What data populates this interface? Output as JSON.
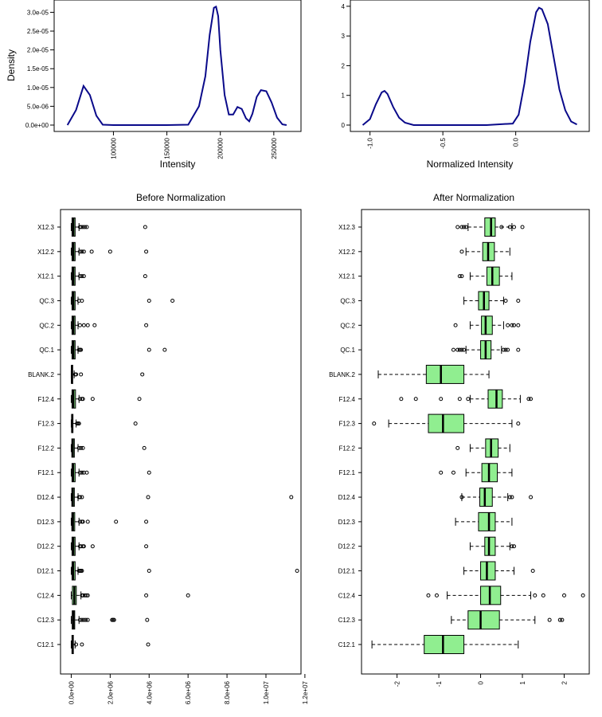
{
  "colors": {
    "density_line": "#0a0a8a",
    "box_after": "#90ee90",
    "box_before": "#90ee90",
    "ink": "#000000"
  },
  "chart_data": [
    {
      "id": "density-before",
      "type": "line",
      "title": "",
      "xlabel": "Intensity",
      "ylabel": "Density",
      "xlim": [
        52000,
        268000
      ],
      "ylim": [
        0,
        3.2e-05
      ],
      "xticks": [
        100000,
        150000,
        200000,
        250000
      ],
      "xtick_labels": [
        "100000",
        "150000",
        "200000",
        "250000"
      ],
      "yticks": [
        0,
        5e-06,
        1e-05,
        1.5e-05,
        2e-05,
        2.5e-05,
        3e-05
      ],
      "ytick_labels": [
        "0.0e+00",
        "5.0e-06",
        "1.0e-05",
        "1.5e-05",
        "2.0e-05",
        "2.5e-05",
        "3.0e-05"
      ],
      "x": [
        57000,
        65000,
        72000,
        78000,
        84000,
        90000,
        100000,
        120000,
        150000,
        170000,
        180000,
        186000,
        190000,
        194000,
        196000,
        198000,
        200000,
        204000,
        208000,
        212000,
        216000,
        220000,
        224000,
        227000,
        230000,
        234000,
        238000,
        243000,
        248000,
        253000,
        258000,
        262000
      ],
      "y": [
        0.0,
        4e-06,
        1.04e-05,
        8e-06,
        2.5e-06,
        1e-07,
        0,
        0,
        0,
        1e-07,
        5e-06,
        1.3e-05,
        2.4e-05,
        3.12e-05,
        3.15e-05,
        2.9e-05,
        2e-05,
        8e-06,
        2.8e-06,
        2.8e-06,
        4.8e-06,
        4.3e-06,
        1.8e-06,
        1e-06,
        3e-06,
        7.5e-06,
        9.3e-06,
        9e-06,
        6e-06,
        2e-06,
        2e-07,
        0
      ]
    },
    {
      "id": "density-after",
      "type": "line",
      "title": "",
      "xlabel": "Normalized Intensity",
      "ylabel": "",
      "xlim": [
        -1.08,
        0.45
      ],
      "ylim": [
        0,
        4.05
      ],
      "xticks": [
        -1.0,
        -0.5,
        0.0
      ],
      "xtick_labels": [
        "-1.0",
        "-0.5",
        "0.0"
      ],
      "yticks": [
        0,
        1,
        2,
        3,
        4
      ],
      "ytick_labels": [
        "0",
        "1",
        "2",
        "3",
        "4"
      ],
      "x": [
        -1.05,
        -1.0,
        -0.96,
        -0.92,
        -0.9,
        -0.88,
        -0.84,
        -0.8,
        -0.76,
        -0.7,
        -0.5,
        -0.2,
        -0.02,
        0.02,
        0.06,
        0.1,
        0.14,
        0.16,
        0.18,
        0.22,
        0.26,
        0.3,
        0.34,
        0.38,
        0.42
      ],
      "y": [
        0.0,
        0.2,
        0.7,
        1.1,
        1.15,
        1.05,
        0.6,
        0.25,
        0.08,
        0.0,
        0.0,
        0.0,
        0.05,
        0.35,
        1.4,
        2.8,
        3.8,
        3.95,
        3.9,
        3.4,
        2.3,
        1.2,
        0.5,
        0.12,
        0.02
      ]
    },
    {
      "id": "box-before",
      "type": "box",
      "title": "Before Normalization",
      "xlabel": "",
      "ylabel": "",
      "xlim": [
        -550000,
        11800000
      ],
      "xticks": [
        0,
        2000000,
        4000000,
        6000000,
        8000000,
        10000000,
        12000000
      ],
      "xtick_labels": [
        "0.0e+00",
        "2.0e+06",
        "4.0e+06",
        "6.0e+06",
        "8.0e+06",
        "1.0e+07",
        "1.2e+07"
      ],
      "categories": [
        "C12.1",
        "C12.3",
        "C12.4",
        "D12.1",
        "D12.2",
        "D12.3",
        "D12.4",
        "F12.1",
        "F12.2",
        "F12.3",
        "F12.4",
        "BLANK.2",
        "QC.1",
        "QC.2",
        "QC.3",
        "X12.1",
        "X12.2",
        "X12.3"
      ],
      "boxes": [
        {
          "q1": 40000,
          "med": 70000,
          "q3": 110000,
          "lo": 0,
          "hi": 200000,
          "out": [
            250000,
            550000,
            3950000
          ]
        },
        {
          "q1": 50000,
          "med": 110000,
          "q3": 180000,
          "lo": 0,
          "hi": 400000,
          "out": [
            450000,
            550000,
            650000,
            750000,
            850000,
            2100000,
            2150000,
            2200000,
            3900000
          ]
        },
        {
          "q1": 60000,
          "med": 160000,
          "q3": 260000,
          "lo": 0,
          "hi": 500000,
          "out": [
            550000,
            600000,
            700000,
            780000,
            850000,
            3850000,
            6000000
          ]
        },
        {
          "q1": 40000,
          "med": 100000,
          "q3": 200000,
          "lo": 0,
          "hi": 350000,
          "out": [
            400000,
            450000,
            500000,
            550000,
            4000000,
            11600000
          ]
        },
        {
          "q1": 40000,
          "med": 110000,
          "q3": 200000,
          "lo": 0,
          "hi": 400000,
          "out": [
            450000,
            500000,
            600000,
            650000,
            1100000,
            3850000
          ]
        },
        {
          "q1": 30000,
          "med": 90000,
          "q3": 180000,
          "lo": 0,
          "hi": 400000,
          "out": [
            450000,
            550000,
            600000,
            850000,
            2300000,
            3850000
          ]
        },
        {
          "q1": 30000,
          "med": 80000,
          "q3": 160000,
          "lo": 0,
          "hi": 350000,
          "out": [
            400000,
            450000,
            550000,
            3950000,
            11300000
          ]
        },
        {
          "q1": 40000,
          "med": 100000,
          "q3": 200000,
          "lo": 0,
          "hi": 400000,
          "out": [
            450000,
            550000,
            650000,
            800000,
            4000000
          ]
        },
        {
          "q1": 30000,
          "med": 80000,
          "q3": 160000,
          "lo": 0,
          "hi": 350000,
          "out": [
            400000,
            500000,
            600000,
            3750000
          ]
        },
        {
          "q1": 20000,
          "med": 50000,
          "q3": 90000,
          "lo": 0,
          "hi": 250000,
          "out": [
            300000,
            350000,
            400000,
            3300000
          ]
        },
        {
          "q1": 40000,
          "med": 110000,
          "q3": 220000,
          "lo": 0,
          "hi": 400000,
          "out": [
            450000,
            550000,
            600000,
            1100000,
            3500000
          ]
        },
        {
          "q1": 15000,
          "med": 35000,
          "q3": 70000,
          "lo": 0,
          "hi": 150000,
          "out": [
            200000,
            250000,
            500000,
            3650000
          ]
        },
        {
          "q1": 40000,
          "med": 110000,
          "q3": 200000,
          "lo": 0,
          "hi": 350000,
          "out": [
            400000,
            450000,
            500000,
            4000000,
            4800000
          ]
        },
        {
          "q1": 40000,
          "med": 110000,
          "q3": 200000,
          "lo": 0,
          "hi": 350000,
          "out": [
            450000,
            650000,
            850000,
            1200000,
            3850000
          ]
        },
        {
          "q1": 40000,
          "med": 110000,
          "q3": 200000,
          "lo": 0,
          "hi": 350000,
          "out": [
            400000,
            550000,
            4000000,
            5200000
          ]
        },
        {
          "q1": 40000,
          "med": 110000,
          "q3": 200000,
          "lo": 0,
          "hi": 400000,
          "out": [
            450000,
            550000,
            650000,
            3800000
          ]
        },
        {
          "q1": 40000,
          "med": 110000,
          "q3": 200000,
          "lo": 0,
          "hi": 400000,
          "out": [
            450000,
            550000,
            650000,
            1050000,
            2000000,
            3850000
          ]
        },
        {
          "q1": 40000,
          "med": 110000,
          "q3": 200000,
          "lo": 0,
          "hi": 400000,
          "out": [
            450000,
            500000,
            600000,
            700000,
            800000,
            3800000
          ]
        }
      ]
    },
    {
      "id": "box-after",
      "type": "box",
      "title": "After Normalization",
      "xlabel": "",
      "ylabel": "",
      "xlim": [
        -2.85,
        2.6
      ],
      "xticks": [
        -2,
        -1,
        0,
        1,
        2
      ],
      "xtick_labels": [
        "-2",
        "-1",
        "0",
        "1",
        "2"
      ],
      "categories": [
        "C12.1",
        "C12.3",
        "C12.4",
        "D12.1",
        "D12.2",
        "D12.3",
        "D12.4",
        "F12.1",
        "F12.2",
        "F12.3",
        "F12.4",
        "BLANK.2",
        "QC.1",
        "QC.2",
        "QC.3",
        "X12.1",
        "X12.2",
        "X12.3"
      ],
      "boxes": [
        {
          "q1": -1.35,
          "med": -0.9,
          "q3": -0.4,
          "lo": -2.6,
          "hi": 0.9,
          "out": []
        },
        {
          "q1": -0.3,
          "med": 0.0,
          "q3": 0.45,
          "lo": -0.7,
          "hi": 1.3,
          "out": [
            1.65,
            1.9,
            1.95
          ]
        },
        {
          "q1": 0.0,
          "med": 0.22,
          "q3": 0.48,
          "lo": -0.8,
          "hi": 1.2,
          "out": [
            -1.25,
            -1.05,
            1.3,
            1.5,
            2.0,
            2.45
          ]
        },
        {
          "q1": 0.0,
          "med": 0.15,
          "q3": 0.35,
          "lo": -0.4,
          "hi": 0.8,
          "out": [
            1.25
          ]
        },
        {
          "q1": 0.1,
          "med": 0.2,
          "q3": 0.35,
          "lo": -0.25,
          "hi": 0.7,
          "out": [
            0.75,
            0.8
          ]
        },
        {
          "q1": -0.05,
          "med": 0.2,
          "q3": 0.35,
          "lo": -0.6,
          "hi": 0.75,
          "out": []
        },
        {
          "q1": -0.02,
          "med": 0.1,
          "q3": 0.28,
          "lo": -0.45,
          "hi": 0.65,
          "out": [
            -0.45,
            0.7,
            0.75,
            1.2
          ]
        },
        {
          "q1": 0.03,
          "med": 0.2,
          "q3": 0.4,
          "lo": -0.35,
          "hi": 0.75,
          "out": [
            -0.95,
            -0.65
          ]
        },
        {
          "q1": 0.12,
          "med": 0.25,
          "q3": 0.42,
          "lo": -0.25,
          "hi": 0.7,
          "out": [
            -0.55
          ]
        },
        {
          "q1": -1.25,
          "med": -0.9,
          "q3": -0.4,
          "lo": -2.2,
          "hi": 0.75,
          "out": [
            -2.55,
            0.9
          ]
        },
        {
          "q1": 0.18,
          "med": 0.38,
          "q3": 0.52,
          "lo": -0.25,
          "hi": 0.95,
          "out": [
            -1.9,
            -1.55,
            -0.95,
            -0.5,
            -0.3,
            1.15,
            1.2
          ]
        },
        {
          "q1": -1.3,
          "med": -0.95,
          "q3": -0.4,
          "lo": -2.45,
          "hi": 0.2,
          "out": []
        },
        {
          "q1": 0.0,
          "med": 0.12,
          "q3": 0.25,
          "lo": -0.35,
          "hi": 0.5,
          "out": [
            -0.65,
            -0.55,
            -0.5,
            -0.45,
            -0.4,
            0.55,
            0.6,
            0.65,
            0.9
          ]
        },
        {
          "q1": 0.02,
          "med": 0.12,
          "q3": 0.28,
          "lo": -0.25,
          "hi": 0.55,
          "out": [
            -0.6,
            0.65,
            0.75,
            0.8,
            0.9
          ]
        },
        {
          "q1": -0.05,
          "med": 0.08,
          "q3": 0.2,
          "lo": -0.4,
          "hi": 0.55,
          "out": [
            0.6,
            0.9
          ]
        },
        {
          "q1": 0.15,
          "med": 0.28,
          "q3": 0.45,
          "lo": -0.25,
          "hi": 0.75,
          "out": [
            -0.5,
            -0.45
          ]
        },
        {
          "q1": 0.05,
          "med": 0.18,
          "q3": 0.33,
          "lo": -0.35,
          "hi": 0.7,
          "out": [
            -0.45
          ]
        },
        {
          "q1": 0.1,
          "med": 0.25,
          "q3": 0.35,
          "lo": -0.3,
          "hi": 0.75,
          "out": [
            -0.55,
            -0.45,
            -0.4,
            -0.35,
            0.5,
            0.7,
            0.8,
            1.0
          ]
        }
      ]
    }
  ]
}
